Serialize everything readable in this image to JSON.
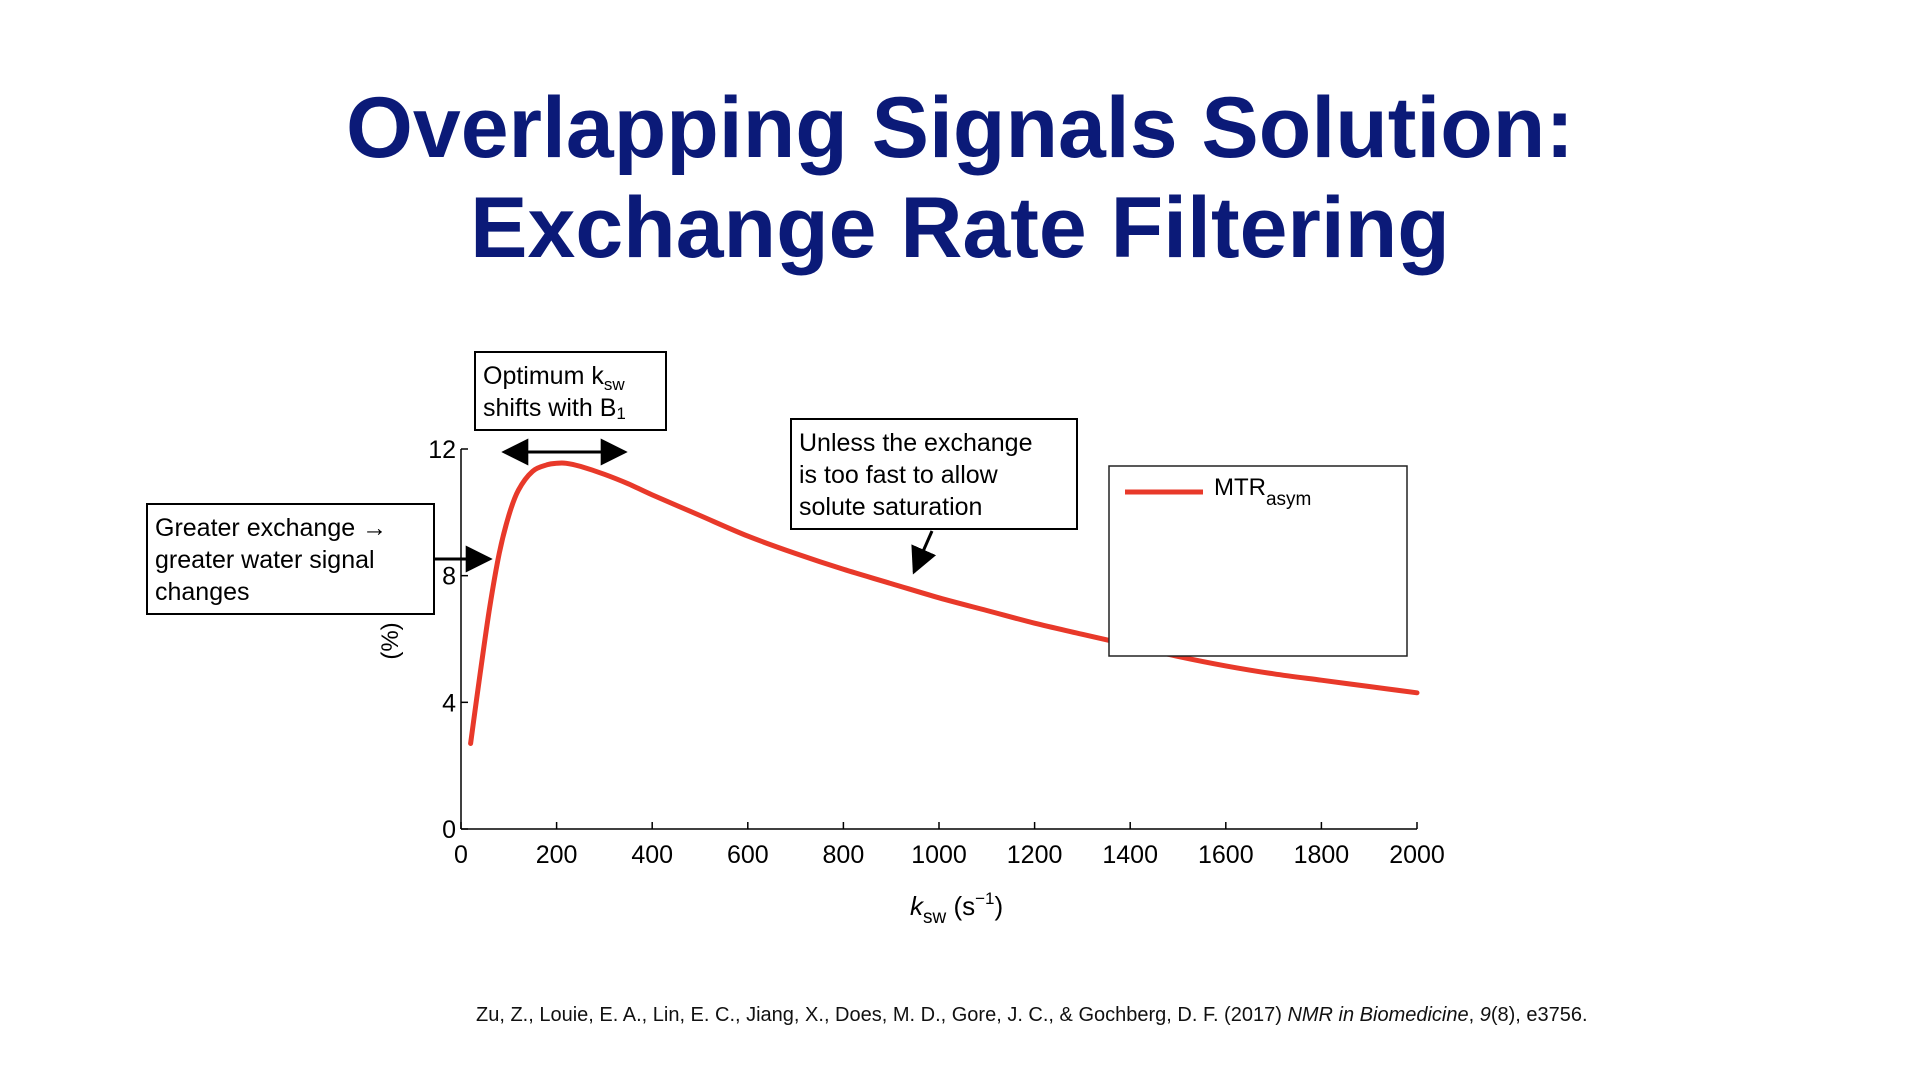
{
  "slide": {
    "title_line1": "Overlapping Signals Solution:",
    "title_line2": "Exchange Rate Filtering",
    "citation": {
      "authors": "Zu, Z., Louie, E. A., Lin, E. C., Jiang, X., Does, M. D., Gore, J. C., & Gochberg, D. F. (2017) ",
      "journal": "NMR in Biomedicine",
      "sep1": ", ",
      "volume": "9",
      "rest": "(8), e3756."
    }
  },
  "chart_data": {
    "type": "line",
    "xlabel_main": "k",
    "xlabel_sub": "sw",
    "xlabel_unit": " (s",
    "xlabel_sup": "−1",
    "xlabel_close": ")",
    "ylabel": "(%)",
    "xlim": [
      0,
      2000
    ],
    "ylim": [
      0,
      12
    ],
    "xticks": [
      "0",
      "200",
      "400",
      "600",
      "800",
      "1000",
      "1200",
      "1400",
      "1600",
      "1800",
      "2000"
    ],
    "yticks": [
      "0",
      "4",
      "8",
      "12"
    ],
    "legend_position": "top-right",
    "series": [
      {
        "name_main": "MTR",
        "name_sub": "asym",
        "color": "#e8392a",
        "x": [
          20,
          30,
          40,
          60,
          80,
          100,
          120,
          150,
          180,
          200,
          220,
          250,
          300,
          350,
          400,
          500,
          600,
          700,
          800,
          900,
          1000,
          1100,
          1200,
          1300,
          1400,
          1500,
          1600,
          1700,
          1800,
          1900,
          2000
        ],
        "y": [
          2.7,
          3.8,
          4.9,
          7.0,
          8.7,
          9.9,
          10.7,
          11.3,
          11.5,
          11.55,
          11.55,
          11.45,
          11.2,
          10.9,
          10.55,
          9.9,
          9.25,
          8.7,
          8.2,
          7.75,
          7.3,
          6.9,
          6.5,
          6.15,
          5.8,
          5.45,
          5.15,
          4.9,
          4.7,
          4.5,
          4.3
        ]
      }
    ],
    "annotations": {
      "optimum_line1_main": "Optimum k",
      "optimum_line1_sub": "sw",
      "optimum_line2_main": "shifts with B",
      "optimum_line2_sub": "1",
      "greater_line1": "Greater exchange →",
      "greater_line2": "greater water signal",
      "greater_line3": "changes",
      "unless_line1": "Unless the exchange",
      "unless_line2": "is too fast to allow",
      "unless_line3": "solute saturation"
    }
  }
}
